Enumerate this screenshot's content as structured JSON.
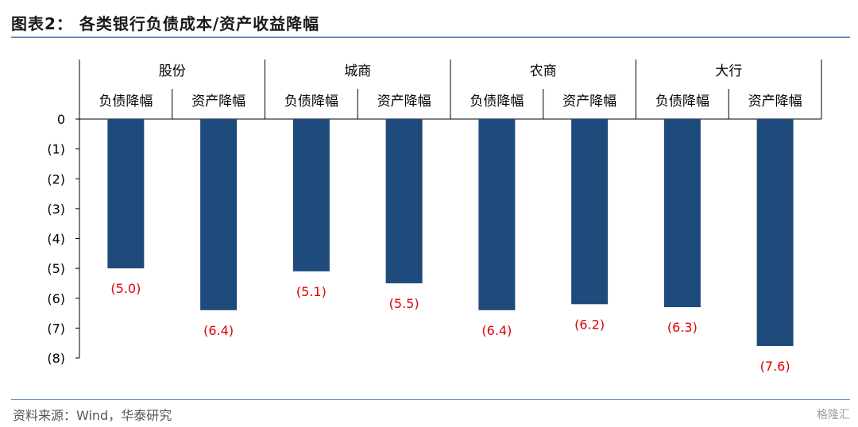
{
  "title": "图表2：  各类银行负债成本/资产收益降幅",
  "source": "资料来源：Wind，华泰研究",
  "watermark": "格隆汇",
  "chart_data": {
    "type": "bar",
    "groups": [
      "股份",
      "城商",
      "农商",
      "大行"
    ],
    "categories": [
      "负债降幅",
      "资产降幅",
      "负债降幅",
      "资产降幅",
      "负债降幅",
      "资产降幅",
      "负债降幅",
      "资产降幅"
    ],
    "values": [
      -5.0,
      -6.4,
      -5.1,
      -5.5,
      -6.4,
      -6.2,
      -6.3,
      -7.6
    ],
    "data_labels": [
      "(5.0)",
      "(6.4)",
      "(5.1)",
      "(5.5)",
      "(6.4)",
      "(6.2)",
      "(6.3)",
      "(7.6)"
    ],
    "ylim": [
      -8,
      0
    ],
    "yticks": [
      0,
      -1,
      -2,
      -3,
      -4,
      -5,
      -6,
      -7,
      -8
    ],
    "ytick_labels": [
      "0",
      "(1)",
      "(2)",
      "(3)",
      "(4)",
      "(5)",
      "(6)",
      "(7)",
      "(8)"
    ],
    "bar_color": "#1f4a7c",
    "label_color": "#e00000",
    "grid": false,
    "legend": "none"
  }
}
